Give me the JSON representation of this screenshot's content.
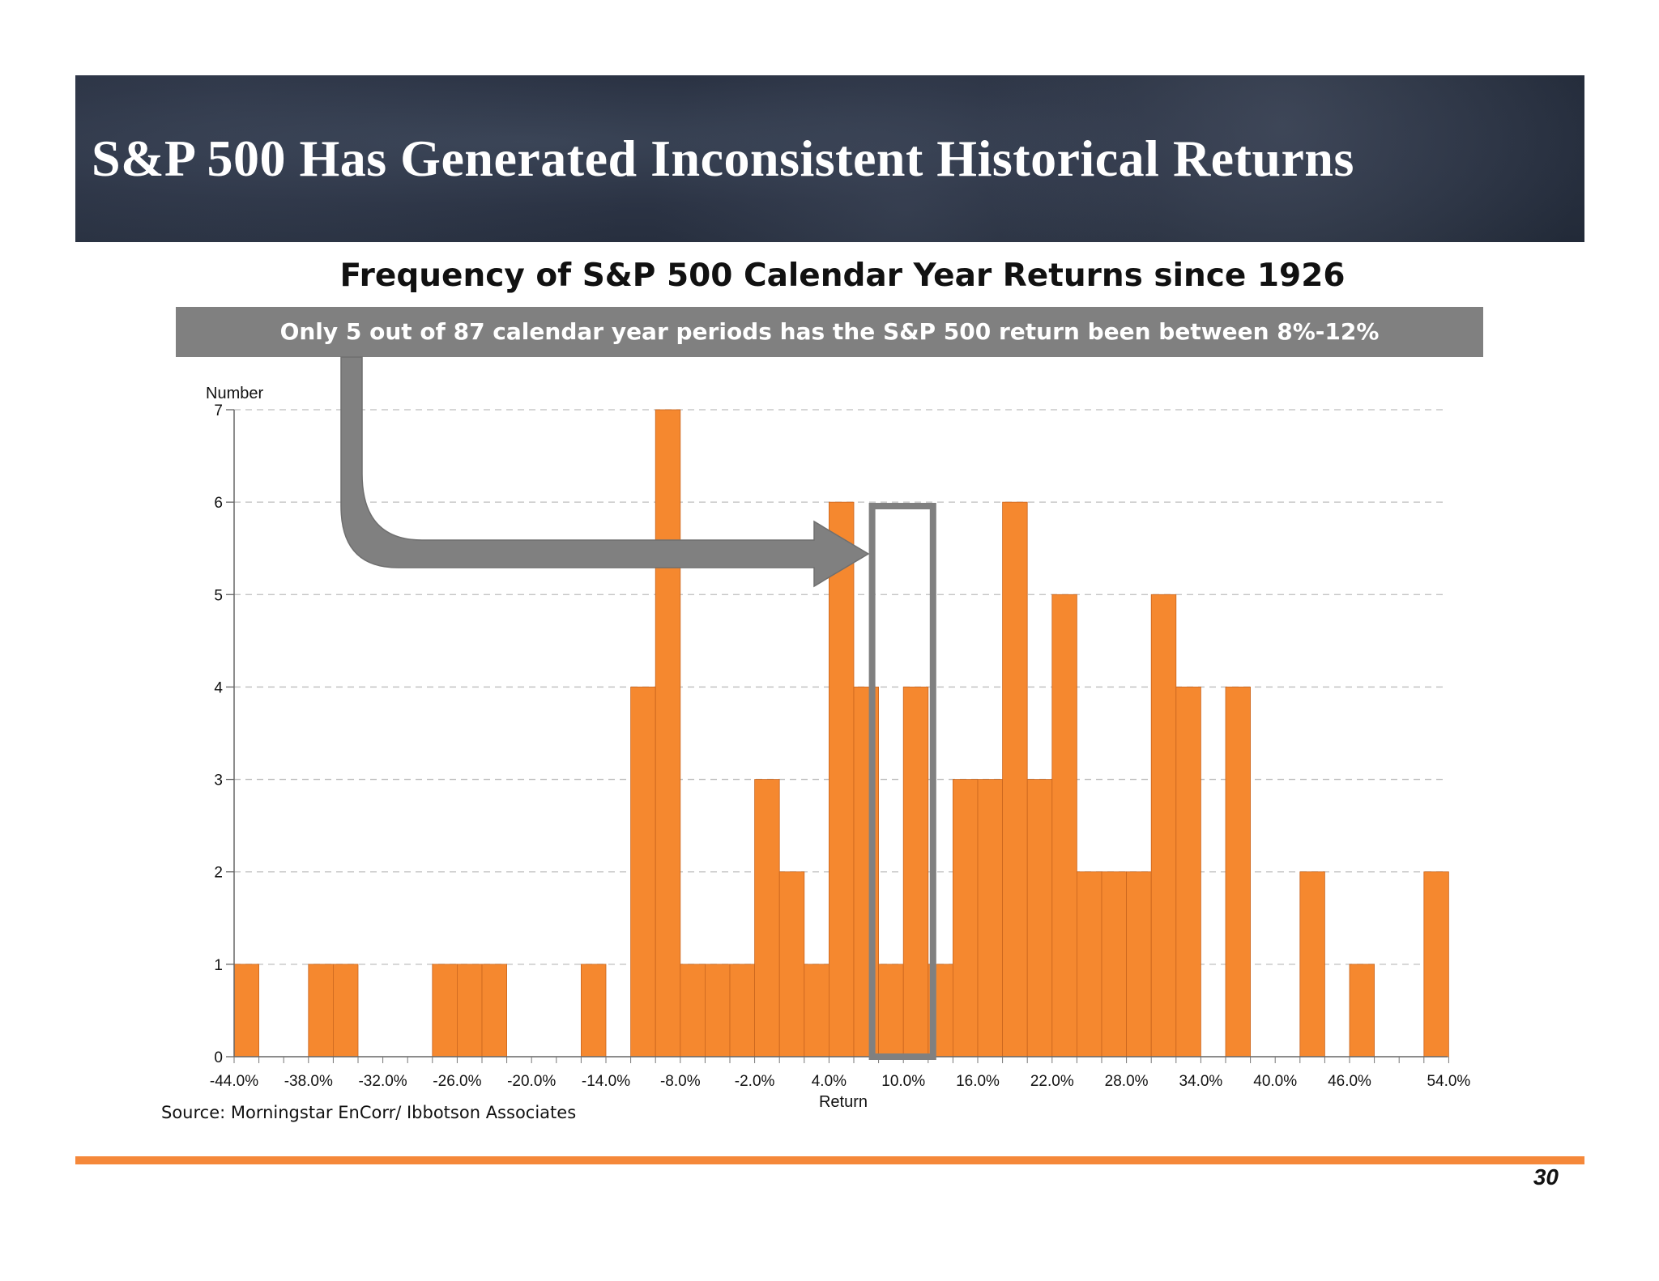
{
  "slide": {
    "title": "S&P 500 Has Generated Inconsistent Historical Returns",
    "callout": "Only 5 out of 87 calendar year periods has the S&P 500 return been between 8%-12%",
    "source": "Source:  Morningstar EnCorr/ Ibbotson Associates",
    "page_number": "30"
  },
  "colors": {
    "bar": "#f5882f",
    "bar_edge": "#c9651e",
    "highlight": "#808080",
    "footer_line": "#f5883a"
  },
  "chart_data": {
    "type": "bar",
    "title": "Frequency of S&P 500 Calendar Year Returns since 1926",
    "ylabel": "Number",
    "xlabel": "Return",
    "ylim": [
      0,
      7
    ],
    "yticks": [
      "0",
      "1",
      "2",
      "3",
      "4",
      "5",
      "6",
      "7"
    ],
    "bin_width_pct": 2,
    "x_start_pct": -44,
    "x_end_pct": 54,
    "xtick_labels": [
      "-44.0%",
      "-38.0%",
      "-32.0%",
      "-26.0%",
      "-20.0%",
      "-14.0%",
      "-8.0%",
      "-2.0%",
      "4.0%",
      "10.0%",
      "16.0%",
      "22.0%",
      "28.0%",
      "34.0%",
      "40.0%",
      "46.0%",
      "54.0%"
    ],
    "xtick_values": [
      -44,
      -38,
      -32,
      -26,
      -20,
      -14,
      -8,
      -2,
      4,
      10,
      16,
      22,
      28,
      34,
      40,
      46,
      54
    ],
    "values": [
      1,
      0,
      0,
      1,
      1,
      0,
      0,
      0,
      1,
      1,
      1,
      0,
      0,
      0,
      1,
      0,
      4,
      7,
      1,
      1,
      1,
      3,
      2,
      1,
      6,
      4,
      1,
      4,
      1,
      3,
      3,
      6,
      3,
      5,
      2,
      2,
      2,
      5,
      4,
      0,
      4,
      0,
      0,
      2,
      0,
      1,
      0,
      0,
      2
    ],
    "highlight_range_pct": [
      8,
      12
    ],
    "grid": "horizontal dashed"
  }
}
